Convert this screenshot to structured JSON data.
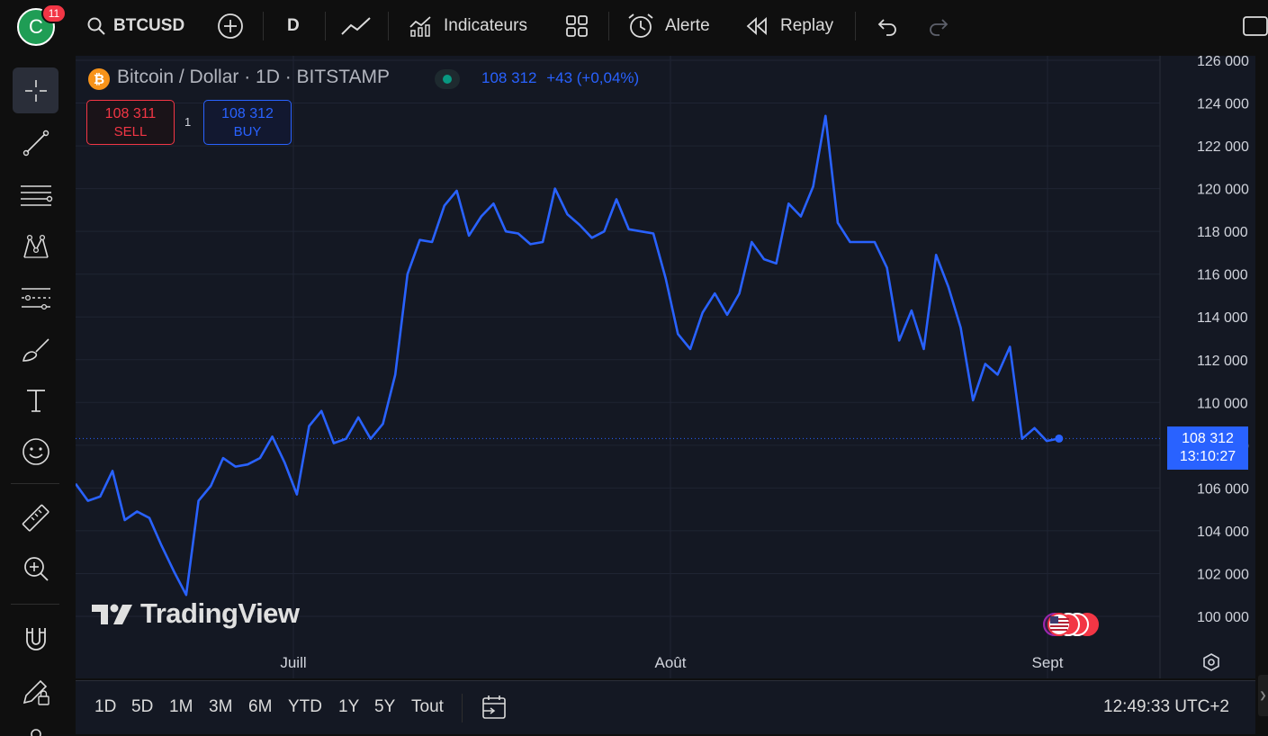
{
  "user": {
    "avatar_letter": "C",
    "notification_count": "11"
  },
  "toolbar": {
    "symbol": "BTCUSD",
    "interval": "D",
    "indicators_label": "Indicateurs",
    "alert_label": "Alerte",
    "replay_label": "Replay"
  },
  "legend": {
    "title": "Bitcoin / Dollar · 1D · BITSTAMP",
    "last": "108 312",
    "change": "+43 (+0,04%)"
  },
  "trade": {
    "sell_price": "108 311",
    "sell_label": "SELL",
    "buy_price": "108 312",
    "buy_label": "BUY",
    "spread": "1"
  },
  "price_tag": {
    "price": "108 312",
    "countdown": "13:10:27"
  },
  "brand": {
    "logo_text": "TradingView"
  },
  "ranges": [
    "1D",
    "5D",
    "1M",
    "3M",
    "6M",
    "YTD",
    "1Y",
    "5Y",
    "Tout"
  ],
  "clock": "12:49:33 UTC+2",
  "colors": {
    "line": "#2962ff",
    "sell": "#f23645",
    "buy": "#2962ff",
    "background": "#141823"
  },
  "chart_data": {
    "type": "line",
    "series": [
      {
        "values": [
          106200,
          105400,
          105600,
          106800,
          104500,
          104900,
          104600,
          103300,
          102100,
          101000,
          105400,
          106100,
          107400,
          107000,
          107100,
          107400,
          108400,
          107200,
          105700,
          108900,
          109600,
          108100,
          108300,
          109300,
          108300,
          109000,
          111300,
          116000,
          117600,
          117500,
          119200,
          119900,
          117800,
          118700,
          119300,
          118000,
          117900,
          117400,
          117500,
          120000,
          118800,
          118300,
          117700,
          118000,
          119500,
          118100,
          118000,
          117900,
          115800,
          113200,
          112500,
          114200,
          115100,
          114100,
          115100,
          117500,
          116700,
          116500,
          119300,
          118700,
          120100,
          123400,
          118400,
          117500,
          117500,
          117500,
          116300,
          112900,
          114300,
          112500,
          116900,
          115400,
          113500,
          110100,
          111800,
          111300,
          112600,
          108300,
          108800,
          108200,
          108312
        ]
      }
    ],
    "x_ticks": [
      "Juill",
      "Août",
      "Sept"
    ],
    "ylim": [
      99000,
      126000
    ],
    "y_ticks": [
      100000,
      102000,
      104000,
      106000,
      108000,
      110000,
      112000,
      114000,
      116000,
      118000,
      120000,
      122000,
      124000,
      126000
    ],
    "y_tick_labels": [
      "100 000",
      "102 000",
      "104 000",
      "106 000",
      "108 000",
      "110 000",
      "112 000",
      "114 000",
      "116 000",
      "118 000",
      "120 000",
      "122 000",
      "124 000",
      "126 000"
    ],
    "last_value": 108312,
    "grid": true
  }
}
